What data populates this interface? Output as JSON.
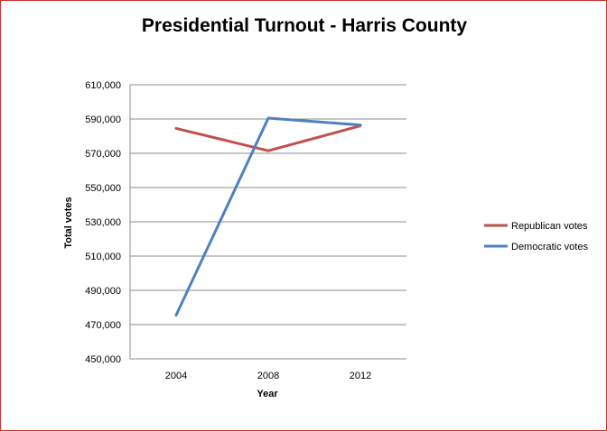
{
  "chart_data": {
    "type": "line",
    "title": "Presidential Turnout - Harris County",
    "xlabel": "Year",
    "ylabel": "Total votes",
    "categories": [
      "2004",
      "2008",
      "2012"
    ],
    "ylim": [
      450000,
      610000
    ],
    "yticks": [
      450000,
      470000,
      490000,
      510000,
      530000,
      550000,
      570000,
      590000,
      610000
    ],
    "ytick_labels": [
      "450,000",
      "470,000",
      "490,000",
      "510,000",
      "530,000",
      "550,000",
      "570,000",
      "590,000",
      "610,000"
    ],
    "grid": true,
    "legend_position": "right",
    "series": [
      {
        "name": "Republican votes",
        "values": [
          584500,
          571500,
          586000
        ],
        "color": "#c0504d"
      },
      {
        "name": "Democratic votes",
        "values": [
          475500,
          590500,
          586500
        ],
        "color": "#4f81bd"
      }
    ]
  }
}
